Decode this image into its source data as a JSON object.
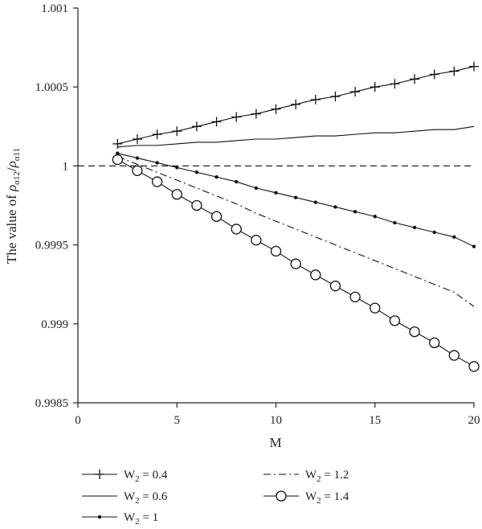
{
  "chart_data": {
    "type": "line",
    "xlabel": "M",
    "ylabel_prefix": "The value of ",
    "ylabel_num": "ρ",
    "ylabel_num_sub": "α12",
    "ylabel_slash": "/",
    "ylabel_den": "ρ",
    "ylabel_den_sub": "α11",
    "xlim": [
      0,
      20
    ],
    "ylim": [
      0.9985,
      1.001
    ],
    "x_ticks": [
      0,
      5,
      10,
      15,
      20
    ],
    "x_tick_labels": [
      "0",
      "5",
      "10",
      "15",
      "20"
    ],
    "y_ticks": [
      0.9985,
      0.999,
      0.9995,
      1,
      1.0005,
      1.001
    ],
    "y_tick_labels": [
      "0.9985",
      "0.999",
      "0.9995",
      "1",
      "1.0005",
      "1.001"
    ],
    "reference_line": {
      "y": 1,
      "style": "dashed"
    },
    "x": [
      2,
      3,
      4,
      5,
      6,
      7,
      8,
      9,
      10,
      11,
      12,
      13,
      14,
      15,
      16,
      17,
      18,
      19,
      20
    ],
    "series": [
      {
        "name": "W2 = 0.4",
        "legend_base": "W",
        "legend_sub": "2",
        "legend_rest": " = 0.4",
        "marker": "plus",
        "line": "solid",
        "values": [
          1.00014,
          1.00017,
          1.0002,
          1.00022,
          1.00025,
          1.00028,
          1.00031,
          1.00033,
          1.00036,
          1.00039,
          1.00042,
          1.00044,
          1.00047,
          1.0005,
          1.00052,
          1.00055,
          1.00058,
          1.0006,
          1.00063
        ]
      },
      {
        "name": "W2 = 0.6",
        "legend_base": "W",
        "legend_sub": "2",
        "legend_rest": " = 0.6",
        "marker": "none",
        "line": "solid",
        "values": [
          1.00012,
          1.00013,
          1.00013,
          1.00014,
          1.00015,
          1.00015,
          1.00016,
          1.00017,
          1.00017,
          1.00018,
          1.00019,
          1.00019,
          1.0002,
          1.00021,
          1.00021,
          1.00022,
          1.00023,
          1.00023,
          1.00025
        ]
      },
      {
        "name": "W2 = 1",
        "legend_base": "W",
        "legend_sub": "2",
        "legend_rest": " = 1",
        "marker": "dot",
        "line": "solid",
        "values": [
          1.00008,
          1.00005,
          1.00002,
          0.99999,
          0.99996,
          0.99993,
          0.9999,
          0.99986,
          0.99983,
          0.9998,
          0.99977,
          0.99974,
          0.99971,
          0.99968,
          0.99964,
          0.99961,
          0.99958,
          0.99955,
          0.99949
        ]
      },
      {
        "name": "W2 = 1.2",
        "legend_base": "W",
        "legend_sub": "2",
        "legend_rest": " = 1.2",
        "marker": "none",
        "line": "dashdot",
        "values": [
          1.00006,
          1.00001,
          0.99996,
          0.99991,
          0.99986,
          0.99981,
          0.99976,
          0.9997,
          0.99965,
          0.9996,
          0.99955,
          0.9995,
          0.99945,
          0.9994,
          0.99935,
          0.9993,
          0.99925,
          0.9992,
          0.99911
        ]
      },
      {
        "name": "W2 = 1.4",
        "legend_base": "W",
        "legend_sub": "2",
        "legend_rest": " = 1.4",
        "marker": "circle",
        "line": "solid",
        "values": [
          1.00004,
          0.99997,
          0.9999,
          0.99982,
          0.99975,
          0.99968,
          0.9996,
          0.99953,
          0.99946,
          0.99938,
          0.99931,
          0.99924,
          0.99917,
          0.9991,
          0.99902,
          0.99895,
          0.99888,
          0.9988,
          0.99873
        ]
      }
    ],
    "legend_position": "bottom"
  }
}
